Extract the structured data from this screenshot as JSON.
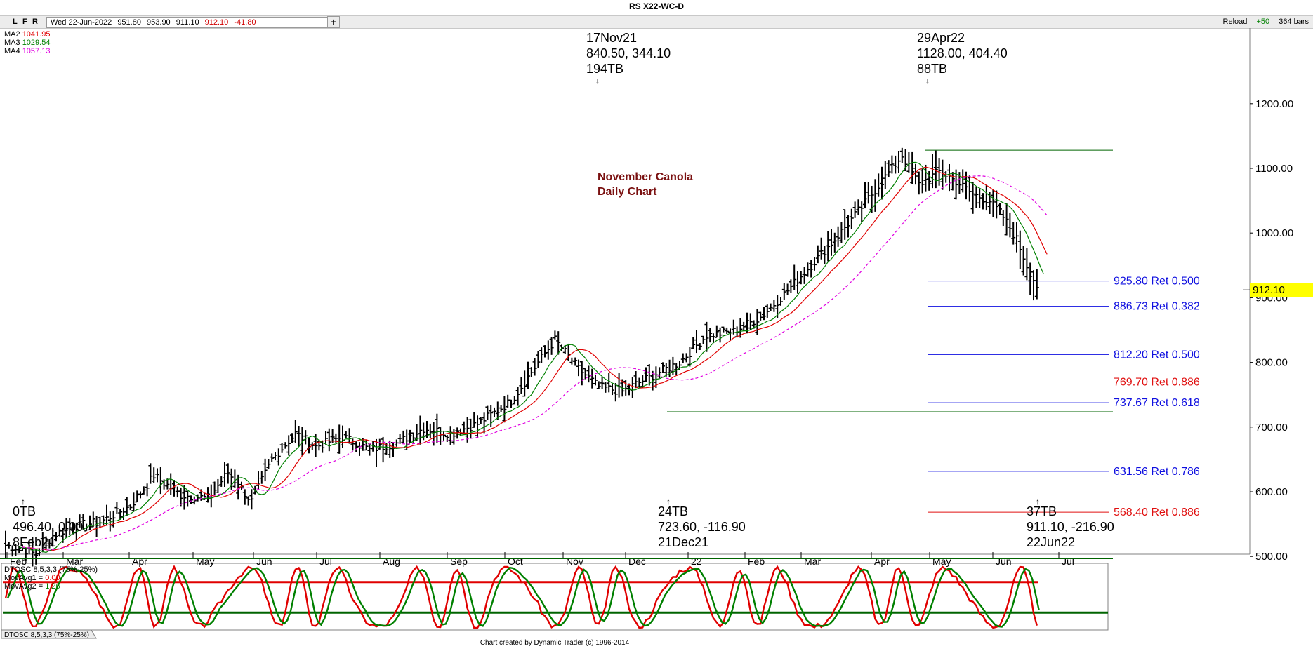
{
  "window": {
    "title": "RS X22-WC-D"
  },
  "toolbar": {
    "buttons": [
      "L",
      "F",
      "R"
    ],
    "quote": {
      "date": "Wed 22-Jun-2022",
      "open": "951.80",
      "high": "953.90",
      "low": "911.10",
      "close": "912.10",
      "change": "-41.80"
    },
    "add_label": "+",
    "reload_label": "Reload",
    "increment_label": "+50",
    "bars_label": "364 bars"
  },
  "legend": {
    "items": [
      {
        "label": "MA2",
        "value": "1041.95",
        "color": "#e00000"
      },
      {
        "label": "MA3",
        "value": "1029.54",
        "color": "#008000"
      },
      {
        "label": "MA4",
        "value": "1057.13",
        "color": "#e000e0"
      }
    ]
  },
  "annotations": {
    "title_lines": [
      "November Canola",
      "Daily Chart"
    ],
    "title_color": "#7a1010",
    "pivots": [
      {
        "lines": [
          "17Nov21",
          "840.50, 344.10",
          "194TB"
        ],
        "arrow": "down"
      },
      {
        "lines": [
          "29Apr22",
          "1128.00, 404.40",
          "88TB"
        ],
        "arrow": "down"
      },
      {
        "lines": [
          "0TB",
          "496.40, 0.00",
          "8Feb21"
        ],
        "arrow": "up"
      },
      {
        "lines": [
          "24TB",
          "723.60, -116.90",
          "21Dec21"
        ],
        "arrow": "up"
      },
      {
        "lines": [
          "37TB",
          "911.10, -216.90",
          "22Jun22"
        ],
        "arrow": "up"
      }
    ]
  },
  "price_tag": {
    "value": "912.10",
    "color": "#ffff00"
  },
  "chart_data": [
    {
      "type": "ohlc",
      "title": "",
      "ylim": [
        450,
        1210
      ],
      "y_ticks": [
        "500.00",
        "600.00",
        "700.00",
        "800.00",
        "900.00",
        "1000.00",
        "1100.00",
        "1200.00"
      ],
      "y_tick_values": [
        500,
        600,
        700,
        800,
        900,
        1000,
        1100,
        1200
      ],
      "x_ticks": [
        "Feb",
        "Mar",
        "Apr",
        "May",
        "Jun",
        "Jul",
        "Aug",
        "Sep",
        "Oct",
        "Nov",
        "Dec",
        "22",
        "Feb",
        "Mar",
        "Apr",
        "May",
        "Jun",
        "Jul"
      ],
      "price_path": [
        [
          0,
          517
        ],
        [
          5,
          512
        ],
        [
          9,
          503
        ],
        [
          14,
          532
        ],
        [
          20,
          547
        ],
        [
          28,
          553
        ],
        [
          37,
          578
        ],
        [
          44,
          625
        ],
        [
          52,
          595
        ],
        [
          60,
          590
        ],
        [
          66,
          630
        ],
        [
          73,
          585
        ],
        [
          79,
          650
        ],
        [
          86,
          690
        ],
        [
          92,
          670
        ],
        [
          100,
          685
        ],
        [
          108,
          665
        ],
        [
          116,
          675
        ],
        [
          124,
          698
        ],
        [
          132,
          690
        ],
        [
          140,
          705
        ],
        [
          150,
          740
        ],
        [
          158,
          800
        ],
        [
          163,
          835
        ],
        [
          170,
          790
        ],
        [
          176,
          762
        ],
        [
          183,
          755
        ],
        [
          192,
          780
        ],
        [
          200,
          800
        ],
        [
          208,
          842
        ],
        [
          216,
          848
        ],
        [
          224,
          870
        ],
        [
          230,
          900
        ],
        [
          238,
          945
        ],
        [
          246,
          990
        ],
        [
          254,
          1040
        ],
        [
          260,
          1080
        ],
        [
          266,
          1120
        ],
        [
          271,
          1075
        ],
        [
          277,
          1095
        ],
        [
          282,
          1080
        ],
        [
          287,
          1060
        ],
        [
          292,
          1050
        ],
        [
          296,
          1025
        ],
        [
          300,
          990
        ],
        [
          303,
          950
        ],
        [
          306,
          918
        ]
      ],
      "series": [
        {
          "name": "MA2",
          "color": "#e00000"
        },
        {
          "name": "MA3",
          "color": "#008000"
        },
        {
          "name": "MA4",
          "color": "#e000e0"
        }
      ],
      "levels": [
        {
          "label": "925.80 Ret 0.500",
          "value": 925.8,
          "color": "#1010e0"
        },
        {
          "label": "886.73 Ret 0.382",
          "value": 886.73,
          "color": "#1010e0"
        },
        {
          "label": "812.20 Ret 0.500",
          "value": 812.2,
          "color": "#1010e0"
        },
        {
          "label": "769.70 Ret 0.886",
          "value": 769.7,
          "color": "#e01010"
        },
        {
          "label": "737.67 Ret 0.618",
          "value": 737.67,
          "color": "#1010e0"
        },
        {
          "label": "631.56 Ret 0.786",
          "value": 631.56,
          "color": "#1010e0"
        },
        {
          "label": "568.40 Ret 0.886",
          "value": 568.4,
          "color": "#e01010"
        }
      ],
      "guide_levels": [
        {
          "value": 1128.0,
          "color": "#006400"
        },
        {
          "value": 723.6,
          "color": "#006400"
        },
        {
          "value": 496.4,
          "color": "#006400"
        }
      ]
    },
    {
      "type": "line",
      "title": "DTOSC 8,5,3,3 (75%-25%)",
      "ylim": [
        0,
        100
      ],
      "bands": [
        75,
        25
      ],
      "series": [
        {
          "name": "MovAvg1",
          "value": "0.00",
          "color": "#e00000"
        },
        {
          "name": "MovAvg2",
          "value": "1.26",
          "color": "#008000"
        }
      ],
      "tab_label": "DTOSC 8,5,3,3 (75%-25%)"
    }
  ],
  "footer": {
    "text": "Chart created by Dynamic Trader  (c) 1996-2014"
  }
}
